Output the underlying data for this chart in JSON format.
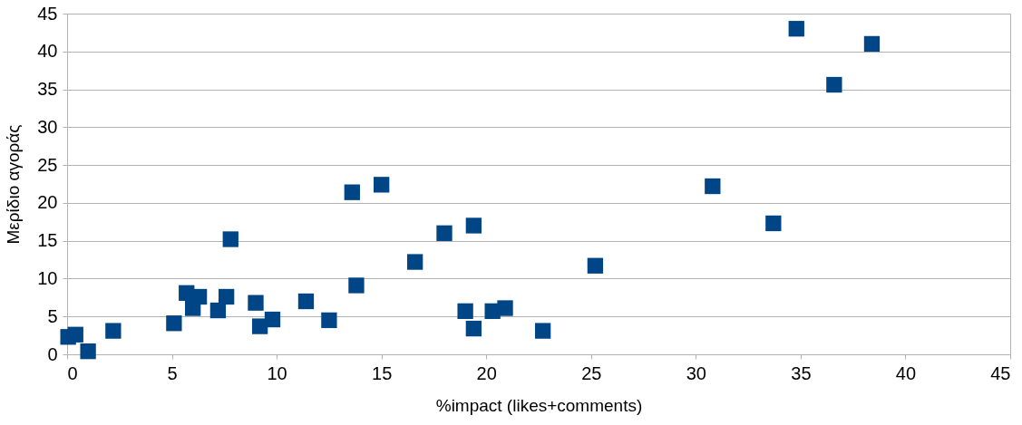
{
  "chart_data": {
    "type": "scatter",
    "xlabel": "%impact (likes+comments)",
    "ylabel": "Μερίδιο αγοράς",
    "x": [
      0.05,
      0.4,
      1.0,
      2.2,
      5.1,
      5.7,
      6.0,
      6.3,
      7.2,
      7.6,
      7.8,
      9.0,
      9.2,
      9.8,
      11.4,
      12.5,
      13.6,
      13.8,
      15.0,
      16.6,
      18.0,
      19.0,
      19.4,
      19.4,
      20.3,
      20.9,
      22.7,
      25.2,
      30.8,
      33.7,
      34.8,
      36.6,
      38.4
    ],
    "series": [
      {
        "color": "#004586",
        "values": [
          2.3,
          2.6,
          0.4,
          3.1,
          4.1,
          8.1,
          6.1,
          7.6,
          5.8,
          7.6,
          15.2,
          6.8,
          3.7,
          4.6,
          7.0,
          4.5,
          21.4,
          9.1,
          22.4,
          12.2,
          16.0,
          5.7,
          17.0,
          3.4,
          5.7,
          6.1,
          3.1,
          11.7,
          22.2,
          17.3,
          43.0,
          35.6,
          41.0
        ]
      }
    ],
    "xlim": [
      0,
      45
    ],
    "xticks": [
      0,
      5,
      10,
      15,
      20,
      25,
      30,
      35,
      40,
      45
    ],
    "ylim": [
      0,
      45
    ],
    "yticks": [
      0,
      5,
      10,
      15,
      20,
      25,
      30,
      35,
      40,
      45
    ],
    "grid": "y",
    "marker": "square"
  }
}
